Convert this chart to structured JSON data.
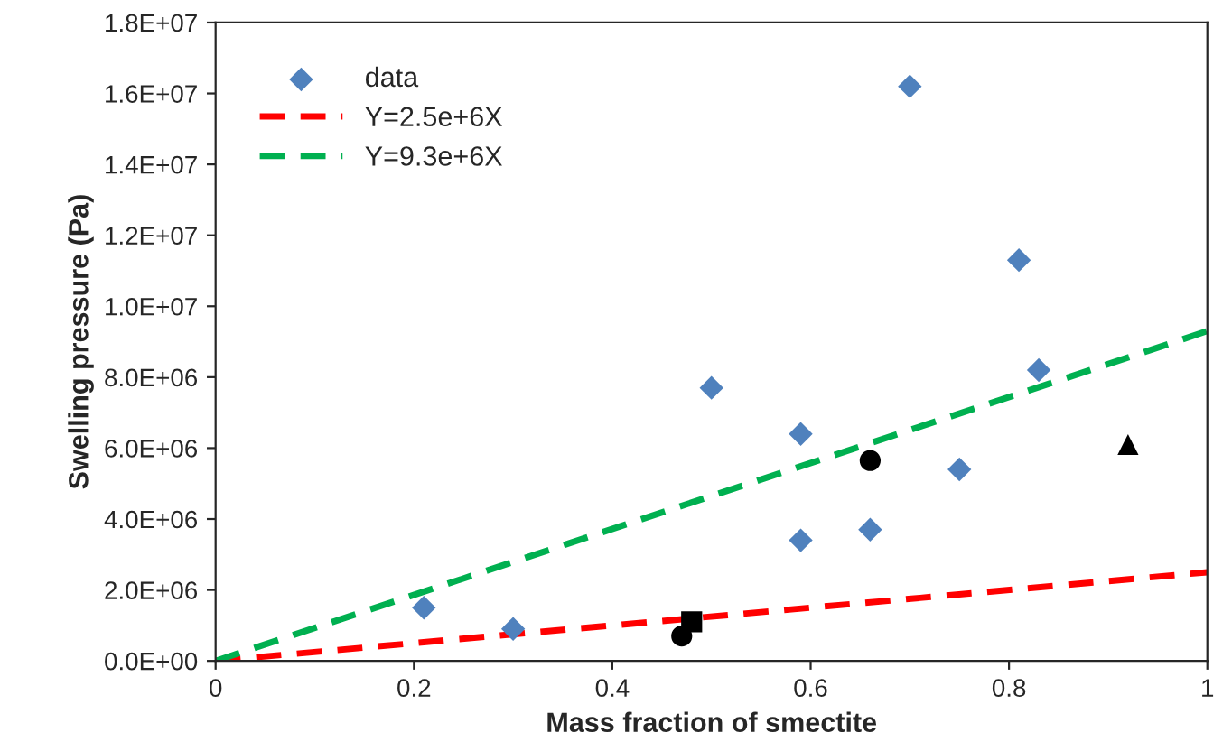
{
  "chart_data": {
    "type": "scatter",
    "xlabel": "Mass fraction of smectite",
    "ylabel": "Swelling pressure (Pa)",
    "xlim": [
      0,
      1
    ],
    "xticks": [
      0,
      0.2,
      0.4,
      0.6,
      0.8,
      1
    ],
    "ylim": [
      0,
      18000000
    ],
    "yticks": [
      {
        "value": 0,
        "label": "0.0E+00"
      },
      {
        "value": 2000000,
        "label": "2.0E+06"
      },
      {
        "value": 4000000,
        "label": "4.0E+06"
      },
      {
        "value": 6000000,
        "label": "6.0E+06"
      },
      {
        "value": 8000000,
        "label": "8.0E+06"
      },
      {
        "value": 10000000,
        "label": "1.0E+07"
      },
      {
        "value": 12000000,
        "label": "1.2E+07"
      },
      {
        "value": 14000000,
        "label": "1.4E+07"
      },
      {
        "value": 16000000,
        "label": "1.6E+07"
      },
      {
        "value": 18000000,
        "label": "1.8E+07"
      }
    ],
    "grid": false,
    "legend": "top left",
    "series": [
      {
        "name": "data",
        "marker": "diamond",
        "color": "#4f81bd",
        "x": [
          0.21,
          0.3,
          0.5,
          0.59,
          0.59,
          0.66,
          0.7,
          0.75,
          0.81,
          0.83
        ],
        "values": [
          1500000,
          900000,
          7700000,
          6400000,
          3400000,
          3700000,
          16200000,
          5400000,
          11300000,
          8200000
        ]
      },
      {
        "name": "Y=2.5e+6X",
        "type": "line",
        "line_style": "dashed",
        "marker": "none",
        "color": "#ff0000",
        "x": [
          0,
          1
        ],
        "values": [
          0,
          2500000
        ]
      },
      {
        "name": "Y=9.3e+6X",
        "type": "line",
        "line_style": "dashed",
        "marker": "none",
        "color": "#00b050",
        "x": [
          0,
          1
        ],
        "values": [
          0,
          9300000
        ]
      },
      {
        "marker": "circle",
        "color": "#000000",
        "x": [
          0.66
        ],
        "values": [
          5650000
        ]
      },
      {
        "marker": "triangle",
        "color": "#000000",
        "x": [
          0.92
        ],
        "values": [
          6100000
        ]
      },
      {
        "marker": "square",
        "color": "#000000",
        "x": [
          0.48
        ],
        "values": [
          1100000
        ]
      },
      {
        "marker": "circle",
        "color": "#000000",
        "x": [
          0.47
        ],
        "values": [
          700000
        ]
      }
    ]
  }
}
